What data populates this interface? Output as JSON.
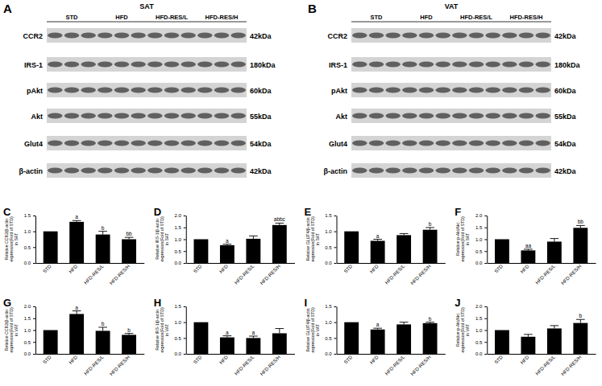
{
  "blots": [
    {
      "label": "A",
      "tissue": "SAT",
      "groups": [
        "STD",
        "HFD",
        "HFD-RES/L",
        "HFD-RES/H"
      ],
      "proteins": [
        {
          "name": "CCR2",
          "size": "42kDa"
        },
        {
          "name": "IRS-1",
          "size": "180kDa"
        },
        {
          "name": "pAkt",
          "size": "60kDa"
        },
        {
          "name": "Akt",
          "size": "55kDa"
        },
        {
          "name": "Glut4",
          "size": "54kDa"
        },
        {
          "name": "β-actin",
          "size": "42kDa"
        }
      ]
    },
    {
      "label": "B",
      "tissue": "VAT",
      "groups": [
        "STD",
        "HFD",
        "HFD-RES/L",
        "HFD-RES/H"
      ],
      "proteins": [
        {
          "name": "CCR2",
          "size": "42kDa"
        },
        {
          "name": "IRS-1",
          "size": "180kDa"
        },
        {
          "name": "pAkt",
          "size": "60kDa"
        },
        {
          "name": "Akt",
          "size": "55kDa"
        },
        {
          "name": "Glut4",
          "size": "54kDa"
        },
        {
          "name": "β-actin",
          "size": "42kDa"
        }
      ]
    }
  ],
  "chart_data": [
    {
      "type": "bar",
      "title": "C",
      "y_label": "Relative CCR2/β-actin expression(Fold of STD) in SAT",
      "categories": [
        "STD",
        "HFD",
        "HFD-RES/L",
        "HFD-RES/H"
      ],
      "values": [
        1.0,
        1.3,
        0.9,
        0.75
      ],
      "errors": [
        null,
        0.04,
        0.1,
        0.06
      ],
      "annotations": [
        null,
        "a",
        "b",
        "bb"
      ],
      "color": "#000000",
      "ylim": [
        0,
        1.5
      ],
      "yticks": [
        {
          "value": 0,
          "label": "0.0"
        },
        {
          "value": 0.5,
          "label": "0.5"
        },
        {
          "value": 1,
          "label": "1.0"
        },
        {
          "value": 1.5,
          "label": "1.5"
        }
      ]
    },
    {
      "type": "bar",
      "title": "D",
      "y_label": "Relative IRS-1/β-actin expression(Fold of STD) in SAT",
      "categories": [
        "STD",
        "HFD",
        "HFD-RES/L",
        "HFD-RES/H"
      ],
      "values": [
        1.0,
        0.75,
        1.02,
        1.6
      ],
      "errors": [
        null,
        0.04,
        0.12,
        0.08
      ],
      "annotations": [
        null,
        "a",
        null,
        "abbc"
      ],
      "color": "#000000",
      "ylim": [
        0,
        2
      ],
      "yticks": [
        {
          "value": 0,
          "label": "0.0"
        },
        {
          "value": 0.5,
          "label": "0.5"
        },
        {
          "value": 1,
          "label": "1.0"
        },
        {
          "value": 1.5,
          "label": "1.5"
        },
        {
          "value": 2,
          "label": "2.0"
        }
      ]
    },
    {
      "type": "bar",
      "title": "E",
      "y_label": "Relative GLUT4/β-actin expression(Fold of STD) in SAT",
      "categories": [
        "STD",
        "HFD",
        "HFD-RES/L",
        "HFD-RES/H"
      ],
      "values": [
        1.0,
        0.7,
        0.88,
        1.05
      ],
      "errors": [
        null,
        0.05,
        0.05,
        0.07
      ],
      "annotations": [
        null,
        "a",
        null,
        "b"
      ],
      "color": "#000000",
      "ylim": [
        0,
        1.5
      ],
      "yticks": [
        {
          "value": 0,
          "label": "0.0"
        },
        {
          "value": 0.5,
          "label": "0.5"
        },
        {
          "value": 1,
          "label": "1.0"
        },
        {
          "value": 1.5,
          "label": "1.5"
        }
      ]
    },
    {
      "type": "bar",
      "title": "F",
      "y_label": "Relative p-Akt/Akt expression(Fold of STD) in SAT",
      "categories": [
        "STD",
        "HFD",
        "HFD-RES/L",
        "HFD-RES/H"
      ],
      "values": [
        1.0,
        0.53,
        0.9,
        1.48
      ],
      "errors": [
        null,
        0.05,
        0.13,
        0.1
      ],
      "annotations": [
        null,
        "aa",
        null,
        "bb"
      ],
      "color": "#000000",
      "ylim": [
        0,
        2
      ],
      "yticks": [
        {
          "value": 0,
          "label": "0.0"
        },
        {
          "value": 0.5,
          "label": "0.5"
        },
        {
          "value": 1,
          "label": "1.0"
        },
        {
          "value": 1.5,
          "label": "1.5"
        },
        {
          "value": 2,
          "label": "2.0"
        }
      ]
    },
    {
      "type": "bar",
      "title": "G",
      "y_label": "Relative CCR2/β-actin expression(Fold of STD) in VAT",
      "categories": [
        "STD",
        "HFD",
        "HFD-RES/L",
        "HFD-RES/H"
      ],
      "values": [
        1.0,
        1.68,
        0.97,
        0.8
      ],
      "errors": [
        null,
        0.13,
        0.15,
        0.06
      ],
      "annotations": [
        null,
        "a",
        "b",
        "b"
      ],
      "color": "#000000",
      "ylim": [
        0,
        2
      ],
      "yticks": [
        {
          "value": 0,
          "label": "0.0"
        },
        {
          "value": 0.5,
          "label": "0.5"
        },
        {
          "value": 1,
          "label": "1.0"
        },
        {
          "value": 1.5,
          "label": "1.5"
        },
        {
          "value": 2,
          "label": "2.0"
        }
      ]
    },
    {
      "type": "bar",
      "title": "H",
      "y_label": "Relative IRS-1/β-actin expression(Fold of STD) in VAT",
      "categories": [
        "STD",
        "HFD",
        "HFD-RES/L",
        "HFD-RES/H"
      ],
      "values": [
        1.0,
        0.52,
        0.5,
        0.65
      ],
      "errors": [
        null,
        0.05,
        0.06,
        0.15
      ],
      "annotations": [
        null,
        "a",
        "a",
        null
      ],
      "color": "#000000",
      "ylim": [
        0,
        1.5
      ],
      "yticks": [
        {
          "value": 0,
          "label": "0.0"
        },
        {
          "value": 0.5,
          "label": "0.5"
        },
        {
          "value": 1,
          "label": "1.0"
        },
        {
          "value": 1.5,
          "label": "1.5"
        }
      ]
    },
    {
      "type": "bar",
      "title": "I",
      "y_label": "Relative GLUT4/β-actin expression(Fold of STD) in VAT",
      "categories": [
        "STD",
        "HFD",
        "HFD-RES/L",
        "HFD-RES/H"
      ],
      "values": [
        1.0,
        0.77,
        0.93,
        0.97
      ],
      "errors": [
        null,
        0.04,
        0.07,
        0.03
      ],
      "annotations": [
        null,
        "a",
        null,
        "b"
      ],
      "color": "#000000",
      "ylim": [
        0,
        1.5
      ],
      "yticks": [
        {
          "value": 0,
          "label": "0.0"
        },
        {
          "value": 0.5,
          "label": "0.5"
        },
        {
          "value": 1,
          "label": "1.0"
        },
        {
          "value": 1.5,
          "label": "1.5"
        }
      ]
    },
    {
      "type": "bar",
      "title": "J",
      "y_label": "Relative p-Akt/Akt expression(Fold of STD) in VAT",
      "categories": [
        "STD",
        "HFD",
        "HFD-RES/L",
        "HFD-RES/H"
      ],
      "values": [
        1.0,
        0.72,
        1.07,
        1.3
      ],
      "errors": [
        null,
        0.1,
        0.12,
        0.15
      ],
      "annotations": [
        null,
        null,
        null,
        "b"
      ],
      "color": "#000000",
      "ylim": [
        0,
        2
      ],
      "yticks": [
        {
          "value": 0,
          "label": "0.0"
        },
        {
          "value": 0.5,
          "label": "0.5"
        },
        {
          "value": 1,
          "label": "1.0"
        },
        {
          "value": 1.5,
          "label": "1.5"
        },
        {
          "value": 2,
          "label": "2.0"
        }
      ]
    }
  ]
}
